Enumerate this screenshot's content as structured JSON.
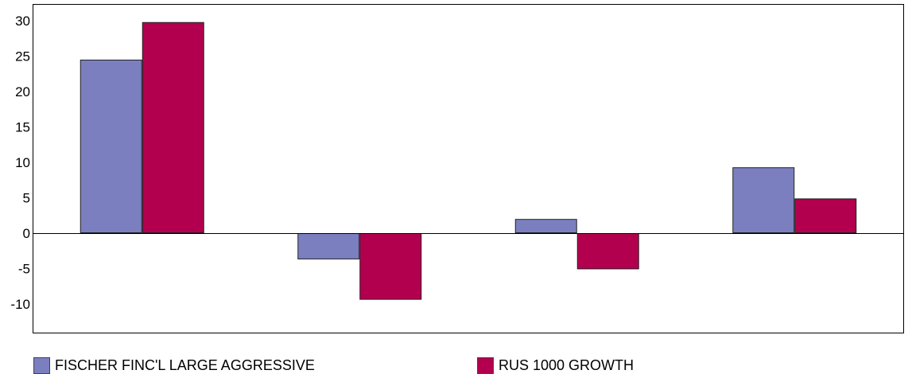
{
  "chart_data": {
    "type": "bar",
    "categories": [
      "",
      "",
      "",
      ""
    ],
    "series": [
      {
        "name": "FISCHER FINC'L LARGE AGGRESSIVE",
        "color": "#7b7fbf",
        "values": [
          24.5,
          -3.7,
          2.0,
          9.3
        ]
      },
      {
        "name": "RUS 1000 GROWTH",
        "color": "#b3004e",
        "values": [
          29.8,
          -9.4,
          -5.1,
          4.9
        ]
      }
    ],
    "title": "",
    "xlabel": "",
    "ylabel": "",
    "ylim": [
      -14,
      32
    ],
    "yticks": [
      30,
      25,
      20,
      15,
      10,
      5,
      0,
      -5,
      -10
    ],
    "grid": false,
    "legend_position": "bottom"
  }
}
